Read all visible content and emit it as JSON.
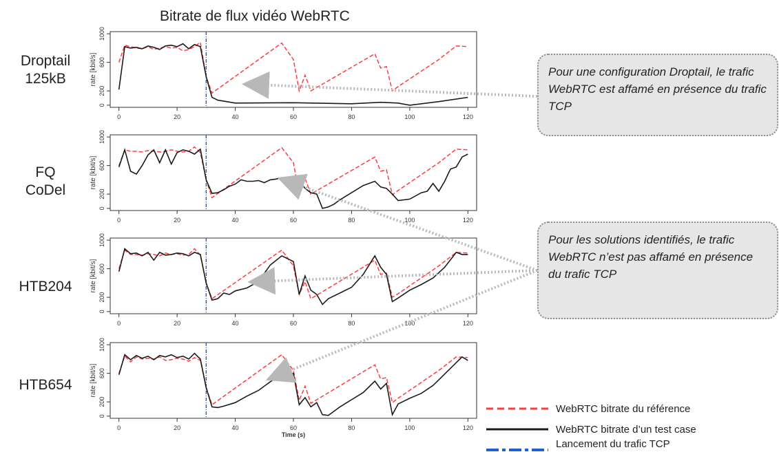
{
  "title": "Bitrate de flux vidéo WebRTC",
  "row_labels": [
    {
      "line1": "Droptail",
      "line2": "125kB"
    },
    {
      "line1": "FQ",
      "line2": "CoDel"
    },
    {
      "line1": "HTB204",
      "line2": ""
    },
    {
      "line1": "HTB654",
      "line2": ""
    }
  ],
  "callouts": [
    {
      "text": "Pour une configuration Droptail, le trafic WebRTC est affamé en présence du trafic TCP"
    },
    {
      "text": "Pour les solutions identifiés, le trafic WebRTC n’est pas affamé en présence du trafic TCP"
    }
  ],
  "legend": {
    "reference": "WebRTC bitrate du référence",
    "testcase": "WebRTC bitrate d’un test case",
    "launch": "Lancement du trafic TCP"
  },
  "colors": {
    "reference": "#ff3b3b",
    "testcase": "#1a1a1a",
    "launch": "#1f5fd6",
    "arrow": "#b8b8b8"
  },
  "chart_data": [
    {
      "type": "line",
      "ylabel": "rate [kbit/s]",
      "xlabel": "",
      "xlim": [
        -3,
        123
      ],
      "ylim": [
        -30,
        1030
      ],
      "xticks": [
        0,
        20,
        40,
        60,
        80,
        100,
        120
      ],
      "yticks": [
        0,
        200,
        600,
        1000
      ],
      "vline": 30,
      "series": [
        {
          "name": "WebRTC bitrate du référence",
          "x": [
            0,
            2,
            4,
            6,
            8,
            10,
            12,
            14,
            16,
            18,
            20,
            22,
            24,
            26,
            28,
            30,
            32,
            56,
            60,
            62,
            64,
            66,
            88,
            90,
            92,
            94,
            96,
            110,
            116,
            120
          ],
          "y": [
            600,
            840,
            820,
            800,
            790,
            820,
            780,
            800,
            820,
            800,
            810,
            760,
            780,
            820,
            880,
            400,
            170,
            870,
            640,
            200,
            420,
            200,
            720,
            520,
            540,
            200,
            260,
            640,
            830,
            820
          ]
        },
        {
          "name": "WebRTC bitrate d’un test case",
          "x": [
            0,
            2,
            4,
            6,
            8,
            10,
            12,
            14,
            16,
            18,
            20,
            22,
            24,
            26,
            28,
            30,
            32,
            34,
            40,
            60,
            80,
            90,
            96,
            100,
            110,
            120
          ],
          "y": [
            220,
            820,
            800,
            810,
            790,
            830,
            810,
            780,
            830,
            840,
            820,
            860,
            790,
            850,
            820,
            400,
            110,
            70,
            30,
            35,
            20,
            40,
            30,
            0,
            50,
            110
          ]
        }
      ]
    },
    {
      "type": "line",
      "ylabel": "rate [kbit/s]",
      "xlabel": "",
      "xlim": [
        -3,
        123
      ],
      "ylim": [
        -30,
        1030
      ],
      "xticks": [
        0,
        20,
        40,
        60,
        80,
        100,
        120
      ],
      "yticks": [
        0,
        200,
        600,
        1000
      ],
      "vline": 30,
      "series": [
        {
          "name": "WebRTC bitrate du référence",
          "x": [
            0,
            2,
            4,
            6,
            8,
            10,
            12,
            14,
            16,
            18,
            20,
            22,
            24,
            26,
            28,
            30,
            32,
            56,
            60,
            62,
            64,
            66,
            88,
            90,
            92,
            94,
            96,
            110,
            116,
            120
          ],
          "y": [
            600,
            820,
            800,
            800,
            790,
            810,
            800,
            790,
            800,
            820,
            800,
            790,
            800,
            860,
            780,
            400,
            150,
            850,
            640,
            200,
            420,
            200,
            720,
            520,
            540,
            190,
            250,
            640,
            830,
            820
          ]
        },
        {
          "name": "WebRTC bitrate d’un test case",
          "x": [
            0,
            2,
            4,
            6,
            8,
            10,
            12,
            14,
            16,
            18,
            20,
            22,
            24,
            26,
            28,
            30,
            32,
            34,
            36,
            38,
            40,
            42,
            44,
            46,
            48,
            50,
            52,
            54,
            56,
            58,
            60,
            62,
            64,
            66,
            68,
            70,
            72,
            74,
            76,
            80,
            84,
            88,
            90,
            92,
            94,
            96,
            100,
            104,
            106,
            108,
            110,
            112,
            114,
            116,
            118,
            120
          ],
          "y": [
            580,
            820,
            520,
            480,
            600,
            750,
            820,
            640,
            820,
            620,
            780,
            820,
            800,
            760,
            830,
            400,
            210,
            220,
            260,
            310,
            340,
            400,
            380,
            380,
            390,
            360,
            400,
            410,
            430,
            380,
            300,
            400,
            280,
            220,
            200,
            0,
            20,
            60,
            120,
            220,
            320,
            380,
            300,
            280,
            200,
            110,
            130,
            220,
            240,
            350,
            240,
            380,
            550,
            580,
            720,
            760
          ]
        }
      ]
    },
    {
      "type": "line",
      "ylabel": "rate [kbit/s]",
      "xlabel": "",
      "xlim": [
        -3,
        123
      ],
      "ylim": [
        -30,
        1030
      ],
      "xticks": [
        0,
        20,
        40,
        60,
        80,
        100,
        120
      ],
      "yticks": [
        0,
        200,
        600,
        1000
      ],
      "vline": 30,
      "series": [
        {
          "name": "WebRTC bitrate du référence",
          "x": [
            0,
            2,
            4,
            6,
            8,
            10,
            12,
            14,
            16,
            18,
            20,
            22,
            24,
            26,
            28,
            30,
            32,
            56,
            60,
            62,
            64,
            66,
            88,
            90,
            92,
            94,
            96,
            110,
            116,
            120
          ],
          "y": [
            600,
            860,
            800,
            800,
            790,
            810,
            800,
            780,
            820,
            800,
            810,
            790,
            800,
            880,
            790,
            400,
            180,
            860,
            640,
            240,
            420,
            180,
            720,
            520,
            540,
            200,
            250,
            640,
            830,
            820
          ]
        },
        {
          "name": "WebRTC bitrate d’un test case",
          "x": [
            0,
            2,
            4,
            6,
            8,
            10,
            12,
            14,
            16,
            18,
            20,
            22,
            24,
            26,
            28,
            30,
            32,
            34,
            36,
            38,
            40,
            44,
            48,
            52,
            56,
            60,
            62,
            64,
            66,
            68,
            70,
            72,
            76,
            80,
            84,
            88,
            90,
            92,
            94,
            96,
            100,
            104,
            108,
            112,
            116,
            118,
            120
          ],
          "y": [
            560,
            880,
            810,
            820,
            780,
            830,
            720,
            830,
            790,
            800,
            820,
            810,
            780,
            830,
            800,
            400,
            160,
            180,
            260,
            240,
            290,
            330,
            420,
            650,
            780,
            700,
            240,
            500,
            300,
            240,
            100,
            180,
            260,
            340,
            520,
            780,
            620,
            520,
            140,
            190,
            300,
            380,
            470,
            620,
            830,
            800,
            800
          ]
        }
      ]
    },
    {
      "type": "line",
      "ylabel": "rate [kbit/s]",
      "xlabel": "Time (s)",
      "xlim": [
        -3,
        123
      ],
      "ylim": [
        -30,
        1030
      ],
      "xticks": [
        0,
        20,
        40,
        60,
        80,
        100,
        120
      ],
      "yticks": [
        0,
        200,
        600,
        1000
      ],
      "vline": 30,
      "series": [
        {
          "name": "WebRTC bitrate du référence",
          "x": [
            0,
            2,
            4,
            6,
            8,
            10,
            12,
            14,
            16,
            18,
            20,
            22,
            24,
            26,
            28,
            30,
            32,
            56,
            60,
            62,
            64,
            66,
            88,
            90,
            92,
            94,
            96,
            110,
            116,
            120
          ],
          "y": [
            600,
            840,
            760,
            830,
            800,
            810,
            800,
            830,
            780,
            790,
            810,
            800,
            770,
            820,
            780,
            400,
            160,
            860,
            640,
            220,
            420,
            180,
            720,
            520,
            540,
            190,
            250,
            640,
            830,
            820
          ]
        },
        {
          "name": "WebRTC bitrate d’un test case",
          "x": [
            0,
            2,
            4,
            6,
            8,
            10,
            12,
            14,
            16,
            18,
            20,
            22,
            24,
            26,
            28,
            30,
            32,
            34,
            36,
            40,
            44,
            48,
            52,
            56,
            60,
            62,
            64,
            66,
            68,
            70,
            72,
            76,
            80,
            84,
            88,
            90,
            92,
            94,
            96,
            100,
            104,
            108,
            112,
            116,
            118,
            120
          ],
          "y": [
            580,
            860,
            790,
            850,
            810,
            840,
            790,
            850,
            830,
            860,
            820,
            840,
            800,
            880,
            800,
            400,
            130,
            120,
            140,
            190,
            280,
            360,
            480,
            580,
            600,
            160,
            260,
            130,
            190,
            20,
            10,
            130,
            230,
            330,
            490,
            380,
            460,
            20,
            170,
            250,
            320,
            430,
            590,
            750,
            830,
            780
          ]
        }
      ]
    }
  ]
}
